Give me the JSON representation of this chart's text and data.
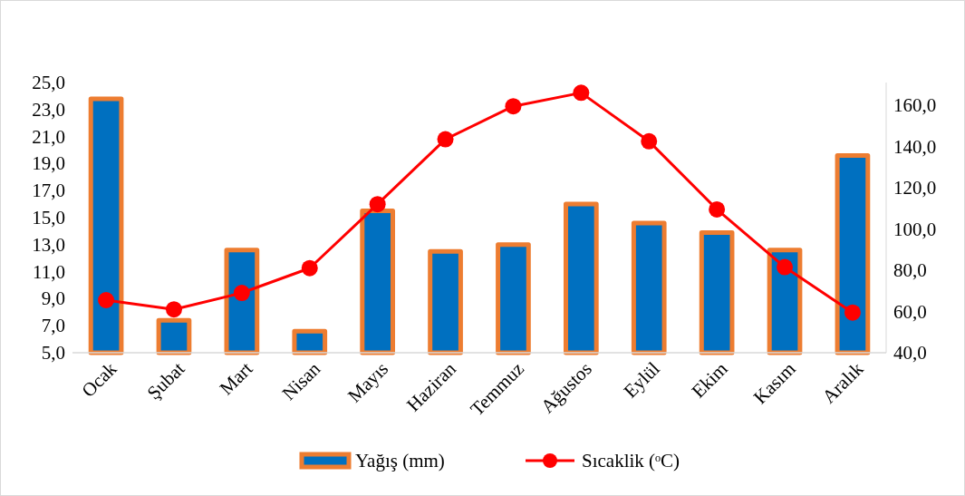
{
  "chart_data": {
    "type": "bar",
    "categories": [
      "Ocak",
      "Şubat",
      "Mart",
      "Nisan",
      "Mayıs",
      "Haziran",
      "Temmuz",
      "Ağustos",
      "Eylül",
      "Ekim",
      "Kasım",
      "Aralık"
    ],
    "series": [
      {
        "name": "Yağış (mm)",
        "color": "#0070c0",
        "values": [
          23.8,
          7.4,
          12.6,
          6.6,
          15.5,
          12.5,
          13.0,
          16.0,
          14.6,
          13.9,
          12.6,
          19.6
        ]
      },
      {
        "name": "Sıcaklik (ᵒC)",
        "type": "line",
        "axis": "y2",
        "color": "#ff0000",
        "marker": "circle",
        "values": [
          65.5,
          61,
          69,
          81,
          112,
          143.5,
          159.5,
          166,
          142.5,
          109.5,
          81.5,
          59.5
        ]
      }
    ],
    "ylim": [
      5,
      25
    ],
    "yticks": [
      {
        "value": 5,
        "label": "5,0"
      },
      {
        "value": 7,
        "label": "7,0"
      },
      {
        "value": 9,
        "label": "9,0"
      },
      {
        "value": 11,
        "label": "11,0"
      },
      {
        "value": 13,
        "label": "13,0"
      },
      {
        "value": 15,
        "label": "15,0"
      },
      {
        "value": 17,
        "label": "17,0"
      },
      {
        "value": 19,
        "label": "19,0"
      },
      {
        "value": 21,
        "label": "21,0"
      },
      {
        "value": 23,
        "label": "23,0"
      },
      {
        "value": 25,
        "label": "25,0"
      }
    ],
    "y2lim": [
      40,
      171
    ],
    "y2ticks": [
      {
        "value": 40,
        "label": "40,0"
      },
      {
        "value": 60,
        "label": "60,0"
      },
      {
        "value": 80,
        "label": "80,0"
      },
      {
        "value": 100,
        "label": "100,0"
      },
      {
        "value": 120,
        "label": "120,0"
      },
      {
        "value": 140,
        "label": "140,0"
      },
      {
        "value": 160,
        "label": "160,0"
      }
    ],
    "grid": false,
    "legend": "bottom"
  }
}
